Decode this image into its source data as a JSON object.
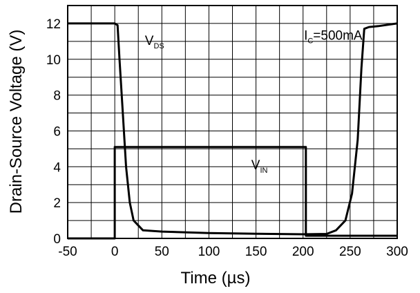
{
  "chart_data": {
    "type": "line",
    "xlabel": "Time (µs)",
    "ylabel": "Drain-Source Voltage (V)",
    "xlim": [
      -50,
      300
    ],
    "ylim": [
      0,
      13
    ],
    "xticks": [
      -50,
      0,
      50,
      100,
      150,
      200,
      250,
      300
    ],
    "yticks": [
      0,
      2,
      4,
      6,
      8,
      10,
      12
    ],
    "grid": true,
    "series": [
      {
        "name": "VDS",
        "x": [
          -50,
          0,
          3,
          5,
          8,
          12,
          16,
          20,
          30,
          50,
          100,
          150,
          200,
          225,
          235,
          245,
          252,
          258,
          262,
          265,
          270,
          280,
          300
        ],
        "y": [
          12,
          12,
          11.9,
          10,
          7.5,
          4,
          2,
          1.0,
          0.45,
          0.38,
          0.3,
          0.26,
          0.23,
          0.25,
          0.45,
          1.0,
          2.5,
          5.5,
          9.5,
          11.7,
          11.8,
          11.85,
          12
        ]
      },
      {
        "name": "VIN",
        "x": [
          -50,
          0,
          0,
          203,
          203,
          300
        ],
        "y": [
          0,
          0,
          5.1,
          5.1,
          0.15,
          0.15
        ]
      }
    ],
    "annotations": [
      {
        "label": "VDS",
        "main": "V",
        "sub": "DS",
        "x": 32,
        "y": 10.8
      },
      {
        "label": "VIN",
        "main": "V",
        "sub": "IN",
        "x": 145,
        "y": 3.85
      },
      {
        "label": "IC=500mA",
        "main": "I",
        "sub": "C",
        "rest": "=500mA",
        "x": 201,
        "y": 11.1
      }
    ]
  }
}
